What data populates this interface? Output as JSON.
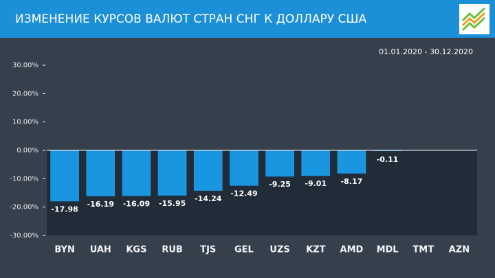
{
  "chart_data": {
    "type": "bar",
    "title": "ИЗМЕНЕНИЕ КУРСОВ ВАЛЮТ СТРАН СНГ К ДОЛЛАРУ США",
    "subtitle": "01.01.2020  -  30.12.2020",
    "categories": [
      "BYN",
      "UAH",
      "KGS",
      "RUB",
      "TJS",
      "GEL",
      "UZS",
      "KZT",
      "AMD",
      "MDL",
      "TMT",
      "AZN"
    ],
    "values": [
      -17.98,
      -16.19,
      -16.09,
      -15.95,
      -14.24,
      -12.49,
      -9.25,
      -9.01,
      -8.17,
      -0.11,
      null,
      null
    ],
    "color": "#1a96e0",
    "ylim": [
      -30,
      30
    ],
    "yticks": [
      {
        "value": 30,
        "label": "30.00%"
      },
      {
        "value": 20,
        "label": "20.00%"
      },
      {
        "value": 10,
        "label": "10.00%"
      },
      {
        "value": 0,
        "label": "0.00%"
      },
      {
        "value": -10,
        "label": "-10.00%"
      },
      {
        "value": -20,
        "label": "-20.00%"
      },
      {
        "value": -30,
        "label": "-30.00%"
      }
    ]
  }
}
